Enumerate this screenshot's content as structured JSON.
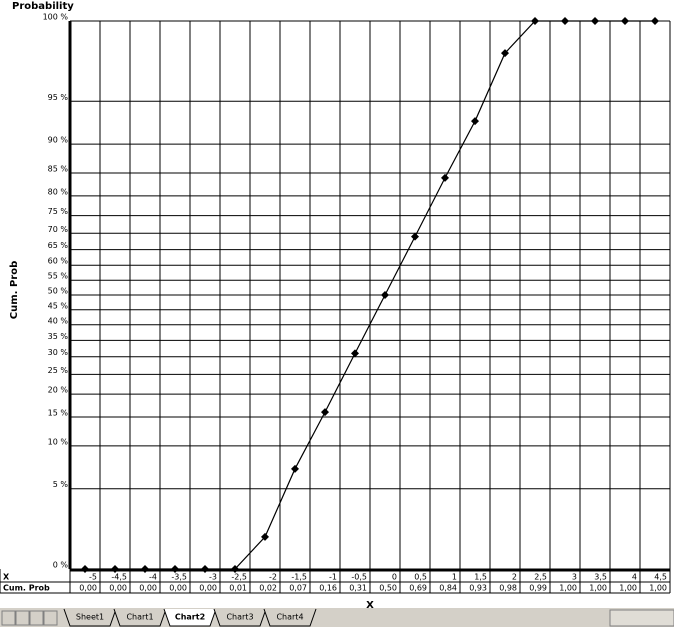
{
  "chart_data": {
    "type": "line",
    "title": "Probability",
    "x_label": "X",
    "y_label": "Cum. Prob",
    "categories": [
      "-5",
      "-4,5",
      "-4",
      "-3,5",
      "-3",
      "-2,5",
      "-2",
      "-1,5",
      "-1",
      "-0,5",
      "0",
      "0,5",
      "1",
      "1,5",
      "2",
      "2,5",
      "3",
      "3,5",
      "4",
      "4,5"
    ],
    "series": [
      {
        "name": "Cum. Prob",
        "color": "#000000",
        "values": [
          0,
          0,
          0,
          0,
          0,
          1,
          2,
          7,
          16,
          31,
          50,
          69,
          84,
          93,
          98,
          99,
          100,
          100,
          100,
          100
        ],
        "value_labels": [
          "0,00",
          "0,00",
          "0,00",
          "0,00",
          "0,00",
          "0,01",
          "0,02",
          "0,07",
          "0,16",
          "0,31",
          "0,50",
          "0,69",
          "0,84",
          "0,93",
          "0,98",
          "0,99",
          "1,00",
          "1,00",
          "1,00",
          "1,00"
        ]
      }
    ],
    "yscale": "probability",
    "ylim": [
      0,
      100
    ],
    "yticks": [
      {
        "value": 0,
        "label": "0 %"
      },
      {
        "value": 5,
        "label": "5 %"
      },
      {
        "value": 10,
        "label": "10 %"
      },
      {
        "value": 15,
        "label": "15 %"
      },
      {
        "value": 20,
        "label": "20 %"
      },
      {
        "value": 25,
        "label": "25 %"
      },
      {
        "value": 30,
        "label": "30 %"
      },
      {
        "value": 35,
        "label": "35 %"
      },
      {
        "value": 40,
        "label": "40 %"
      },
      {
        "value": 45,
        "label": "45 %"
      },
      {
        "value": 50,
        "label": "50 %"
      },
      {
        "value": 55,
        "label": "55 %"
      },
      {
        "value": 60,
        "label": "60 %"
      },
      {
        "value": 65,
        "label": "65 %"
      },
      {
        "value": 70,
        "label": "70 %"
      },
      {
        "value": 75,
        "label": "75 %"
      },
      {
        "value": 80,
        "label": "80 %"
      },
      {
        "value": 85,
        "label": "85 %"
      },
      {
        "value": 90,
        "label": "90 %"
      },
      {
        "value": 95,
        "label": "95 %"
      },
      {
        "value": 100,
        "label": "100 %"
      }
    ],
    "grid": true,
    "data_table": true
  },
  "ui": {
    "tabs": [
      "Sheet1",
      "Chart1",
      "Chart2",
      "Chart3",
      "Chart4"
    ],
    "active_tab": 2
  }
}
